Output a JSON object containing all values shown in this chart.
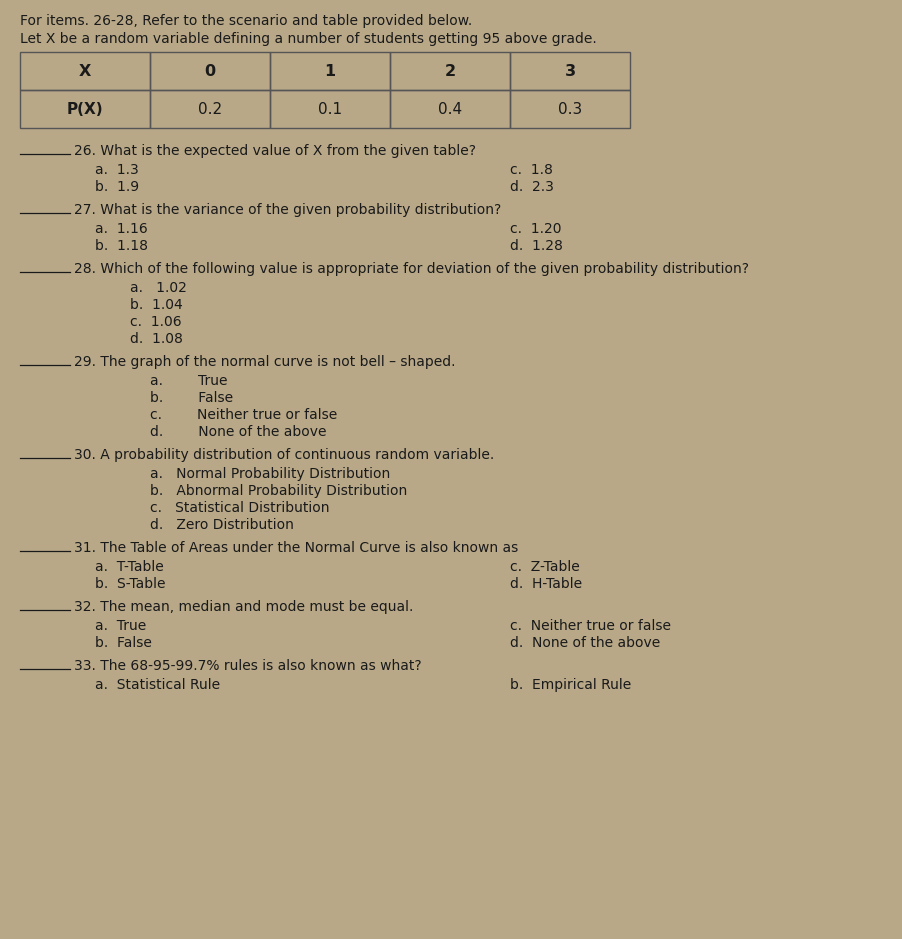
{
  "bg_color": "#b8a888",
  "text_color": "#1a1a1a",
  "header_text": "For items. 26-28, Refer to the scenario and table provided below.",
  "subheader_text": "Let X be a random variable defining a number of students getting 95 above grade.",
  "table": {
    "col_headers": [
      "X",
      "0",
      "1",
      "2",
      "3"
    ],
    "row2": [
      "P(X)",
      "0.2",
      "0.1",
      "0.4",
      "0.3"
    ]
  },
  "questions": [
    {
      "number": "26.",
      "text": "What is the expected value of X from the given table?",
      "options_left": [
        "a.  1.3",
        "b.  1.9"
      ],
      "options_right": [
        "c.  1.8",
        "d.  2.3"
      ],
      "layout": "two_col"
    },
    {
      "number": "27.",
      "text": "What is the variance of the given probability distribution?",
      "options_left": [
        "a.  1.16",
        "b.  1.18"
      ],
      "options_right": [
        "c.  1.20",
        "d.  1.28"
      ],
      "layout": "two_col"
    },
    {
      "number": "28.",
      "text": "Which of the following value is appropriate for deviation of the given probability distribution?",
      "options_left": [
        "a.   1.02",
        "b.  1.04",
        "c.  1.06",
        "d.  1.08"
      ],
      "options_right": [],
      "layout": "one_col"
    },
    {
      "number": "29.",
      "text": "The graph of the normal curve is not bell – shaped.",
      "options_left": [
        "a.        True",
        "b.        False",
        "c.        Neither true or false",
        "d.        None of the above"
      ],
      "options_right": [],
      "layout": "one_col_wide"
    },
    {
      "number": "30.",
      "text": "A probability distribution of continuous random variable.",
      "options_left": [
        "a.   Normal Probability Distribution",
        "b.   Abnormal Probability Distribution",
        "c.   Statistical Distribution",
        "d.   Zero Distribution"
      ],
      "options_right": [],
      "layout": "one_col_wide"
    },
    {
      "number": "31.",
      "text": "The Table of Areas under the Normal Curve is also known as",
      "options_left": [
        "a.  T-Table",
        "b.  S-Table"
      ],
      "options_right": [
        "c.  Z-Table",
        "d.  H-Table"
      ],
      "layout": "two_col"
    },
    {
      "number": "32.",
      "text": "The mean, median and mode must be equal.",
      "options_left": [
        "a.  True",
        "b.  False"
      ],
      "options_right": [
        "c.  Neither true or false",
        "d.  None of the above"
      ],
      "layout": "two_col"
    },
    {
      "number": "33.",
      "text": "The 68-95-99.7% rules is also known as what?",
      "options_left": [
        "a.  Statistical Rule"
      ],
      "options_right": [
        "b.  Empirical Rule"
      ],
      "layout": "two_col"
    }
  ],
  "figw": 9.02,
  "figh": 9.39,
  "dpi": 100
}
